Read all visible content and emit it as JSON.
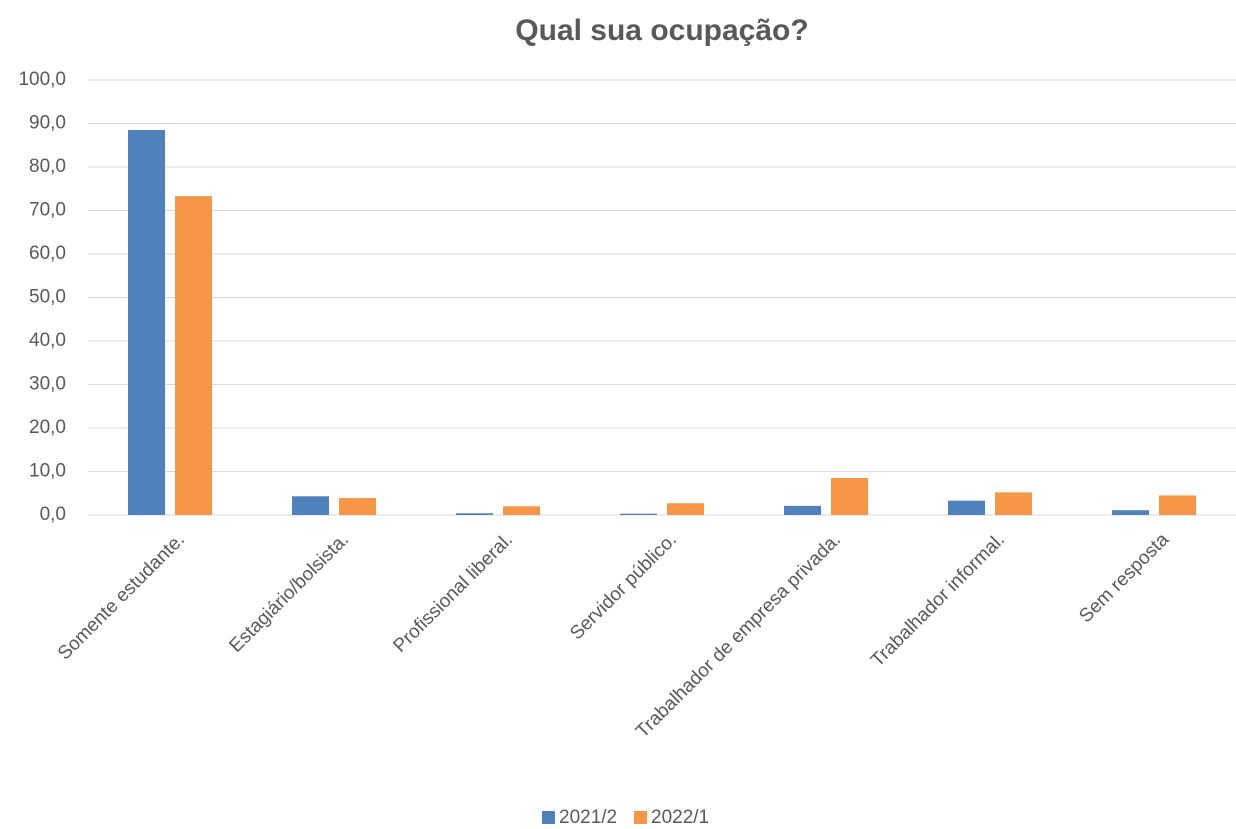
{
  "chart_data": {
    "type": "bar",
    "title": "Qual sua ocupação?",
    "categories": [
      "Somente estudante.",
      "Estagiário/bolsista.",
      "Profissional liberal.",
      "Servidor público.",
      "Trabalhador de empresa privada.",
      "Trabalhador informal.",
      "Sem resposta"
    ],
    "series": [
      {
        "name": "2021/2",
        "color": "#4f81bd",
        "values": [
          88.5,
          4.3,
          0.4,
          0.3,
          2.1,
          3.3,
          1.1
        ]
      },
      {
        "name": "2022/1",
        "color": "#f79646",
        "values": [
          73.3,
          3.9,
          2.0,
          2.7,
          8.5,
          5.2,
          4.5
        ]
      }
    ],
    "ylim": [
      0,
      100
    ],
    "yticks": [
      {
        "value": 0,
        "label": "0,0"
      },
      {
        "value": 10,
        "label": "10,0"
      },
      {
        "value": 20,
        "label": "20,0"
      },
      {
        "value": 30,
        "label": "30,0"
      },
      {
        "value": 40,
        "label": "40,0"
      },
      {
        "value": 50,
        "label": "50,0"
      },
      {
        "value": 60,
        "label": "60,0"
      },
      {
        "value": 70,
        "label": "70,0"
      },
      {
        "value": 80,
        "label": "80,0"
      },
      {
        "value": 90,
        "label": "90,0"
      },
      {
        "value": 100,
        "label": "100,0"
      }
    ],
    "grid": true,
    "legend": "bottom"
  }
}
